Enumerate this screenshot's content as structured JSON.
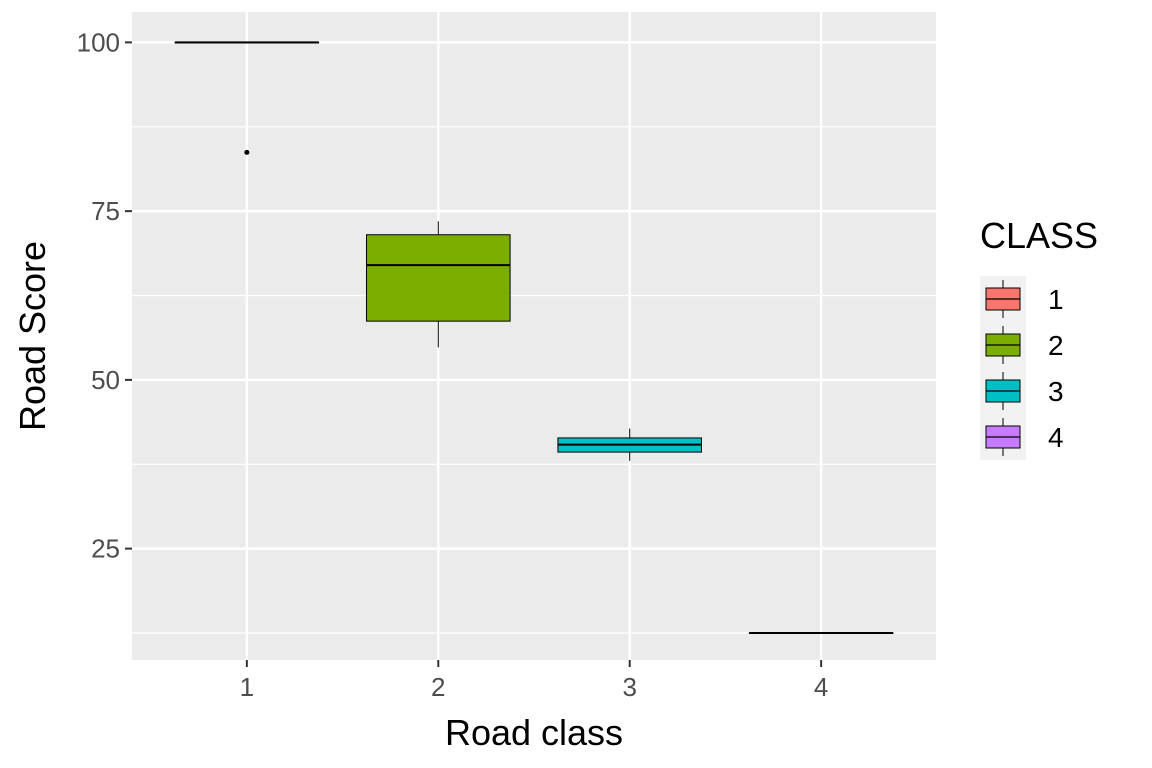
{
  "chart_data": {
    "type": "box",
    "xlabel": "Road class",
    "ylabel": "Road Score",
    "categories": [
      "1",
      "2",
      "3",
      "4"
    ],
    "ylim": [
      8.5,
      104.5
    ],
    "yticks": [
      25,
      50,
      75,
      100
    ],
    "grid": true,
    "legend": {
      "title": "CLASS",
      "position": "right",
      "entries": [
        "1",
        "2",
        "3",
        "4"
      ]
    },
    "colors": [
      "#F8766D",
      "#7CAE00",
      "#00BFC4",
      "#C77CFF"
    ],
    "series": [
      {
        "category": "1",
        "min": 100,
        "q1": 100,
        "median": 100,
        "q3": 100,
        "max": 100,
        "outliers": [
          83.7
        ]
      },
      {
        "category": "2",
        "min": 54.8,
        "q1": 58.7,
        "median": 67.0,
        "q3": 71.5,
        "max": 73.5,
        "outliers": []
      },
      {
        "category": "3",
        "min": 38.0,
        "q1": 39.3,
        "median": 40.4,
        "q3": 41.4,
        "max": 42.8,
        "outliers": []
      },
      {
        "category": "4",
        "min": 12.5,
        "q1": 12.5,
        "median": 12.5,
        "q3": 12.5,
        "max": 12.5,
        "outliers": []
      }
    ]
  }
}
